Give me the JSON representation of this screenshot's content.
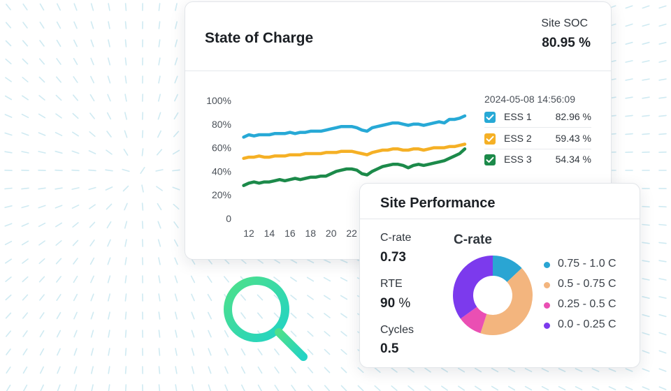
{
  "soc_card": {
    "title": "State of Charge",
    "site_soc_label": "Site SOC",
    "site_soc_value": "80.95 %",
    "timestamp": "2024-05-08 14:56:09",
    "units": [
      {
        "name": "ESS 1",
        "value": "82.96 %",
        "color": "#27a9d6",
        "checked": true
      },
      {
        "name": "ESS 2",
        "value": "59.43 %",
        "color": "#f5b025",
        "checked": true
      },
      {
        "name": "ESS 3",
        "value": "54.34 %",
        "color": "#1c8a4a",
        "checked": true
      }
    ]
  },
  "chart_data": {
    "type": "line",
    "title": "",
    "xlabel": "",
    "ylabel": "",
    "x_ticks": [
      "12",
      "14",
      "16",
      "18",
      "20",
      "22"
    ],
    "y_ticks": [
      "0",
      "20%",
      "40%",
      "60%",
      "80%",
      "100%"
    ],
    "ylim": [
      0,
      100
    ],
    "x": [
      11.5,
      12,
      12.5,
      13,
      13.5,
      14,
      14.5,
      15,
      15.5,
      16,
      16.5,
      17,
      17.5,
      18,
      18.5,
      19,
      19.5,
      20,
      20.5,
      21,
      21.5,
      22,
      22.5,
      23,
      23.5,
      24,
      24.5,
      25,
      25.5,
      26,
      26.5,
      27,
      27.5,
      28,
      28.5,
      29,
      29.5,
      30,
      30.5,
      31,
      31.5,
      32,
      32.5,
      33
    ],
    "series": [
      {
        "name": "ESS 1",
        "color": "#27a9d6",
        "values": [
          69,
          71,
          70,
          71,
          71,
          71,
          72,
          72,
          72,
          73,
          72,
          73,
          73,
          74,
          74,
          74,
          75,
          76,
          77,
          78,
          78,
          78,
          77,
          75,
          74,
          77,
          78,
          79,
          80,
          81,
          81,
          80,
          79,
          80,
          80,
          79,
          80,
          81,
          82,
          81,
          84,
          84,
          85,
          87
        ]
      },
      {
        "name": "ESS 2",
        "color": "#f5b025",
        "values": [
          51,
          52,
          52,
          53,
          52,
          52,
          53,
          53,
          53,
          54,
          54,
          54,
          55,
          55,
          55,
          55,
          56,
          56,
          56,
          57,
          57,
          57,
          56,
          55,
          54,
          56,
          57,
          58,
          58,
          59,
          59,
          58,
          58,
          59,
          59,
          58,
          59,
          60,
          60,
          60,
          61,
          61,
          62,
          63
        ]
      },
      {
        "name": "ESS 3",
        "color": "#1c8a4a",
        "values": [
          28,
          30,
          31,
          30,
          31,
          31,
          32,
          33,
          32,
          33,
          34,
          33,
          34,
          35,
          35,
          36,
          36,
          38,
          40,
          41,
          42,
          42,
          41,
          38,
          37,
          40,
          42,
          44,
          45,
          46,
          46,
          45,
          43,
          45,
          46,
          45,
          46,
          47,
          48,
          49,
          51,
          53,
          55,
          59
        ]
      }
    ],
    "legend": "right",
    "grid": false
  },
  "perf_card": {
    "title": "Site Performance",
    "metrics": [
      {
        "label": "C-rate",
        "value": "0.73",
        "unit": ""
      },
      {
        "label": "RTE",
        "value": "90",
        "unit": " %"
      },
      {
        "label": "Cycles",
        "value": "0.5",
        "unit": ""
      }
    ],
    "donut": {
      "title": "C-rate",
      "type": "pie",
      "segments": [
        {
          "label": "0.75 - 1.0 C",
          "value": 13,
          "color": "#2aa5d3"
        },
        {
          "label": "0.5 - 0.75 C",
          "value": 42,
          "color": "#f3b57e"
        },
        {
          "label": "0.25 - 0.5 C",
          "value": 10,
          "color": "#ea4fb3"
        },
        {
          "label": "0.0 - 0.25 C",
          "value": 35,
          "color": "#7c3aed"
        }
      ]
    }
  }
}
